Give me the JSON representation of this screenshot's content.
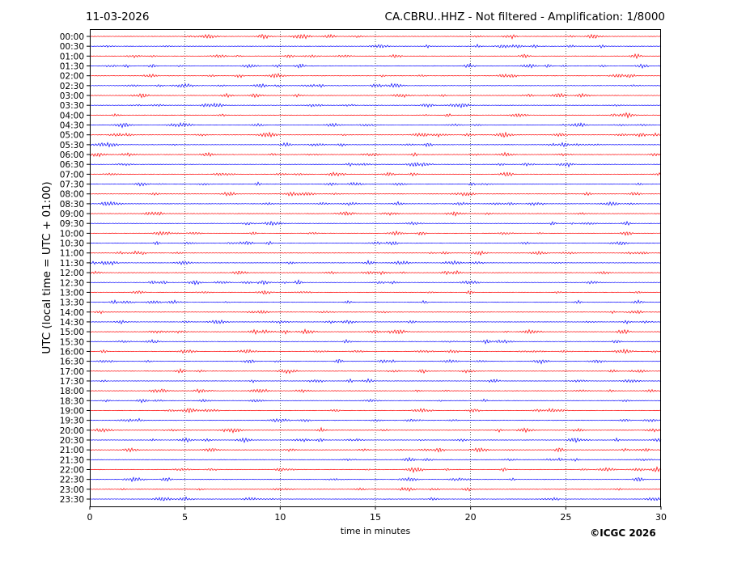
{
  "header": {
    "date": "11-03-2026",
    "station_title": "CA.CBRU..HHZ - Not filtered - Amplification: 1/8000"
  },
  "copyright": "©ICGC 2026",
  "chart_data": {
    "type": "line",
    "title": "CA.CBRU..HHZ - Not filtered - Amplification: 1/8000",
    "xlabel": "time in minutes",
    "ylabel": "UTC (local time = UTC + 01:00)",
    "xlim": [
      0,
      30
    ],
    "x_ticks": [
      "0",
      "5",
      "10",
      "15",
      "20",
      "25",
      "30"
    ],
    "x_tick_values": [
      0,
      5,
      10,
      15,
      20,
      25,
      30
    ],
    "grid": "vertical dotted at each x tick",
    "row_labels": [
      "00:00",
      "00:30",
      "01:00",
      "01:30",
      "02:00",
      "02:30",
      "03:00",
      "03:30",
      "04:00",
      "04:30",
      "05:00",
      "05:30",
      "06:00",
      "06:30",
      "07:00",
      "07:30",
      "08:00",
      "08:30",
      "09:00",
      "09:30",
      "10:00",
      "10:30",
      "11:00",
      "11:30",
      "12:00",
      "12:30",
      "13:00",
      "13:30",
      "14:00",
      "14:30",
      "15:00",
      "15:30",
      "16:00",
      "16:30",
      "17:00",
      "17:30",
      "18:00",
      "18:30",
      "19:00",
      "19:30",
      "20:00",
      "20:30",
      "21:00",
      "21:30",
      "22:00",
      "22:30",
      "23:00",
      "23:30"
    ],
    "series_colors": [
      "#ff0000",
      "#0000ff"
    ],
    "color_rule": "alternating per trace row: red, blue"
  }
}
